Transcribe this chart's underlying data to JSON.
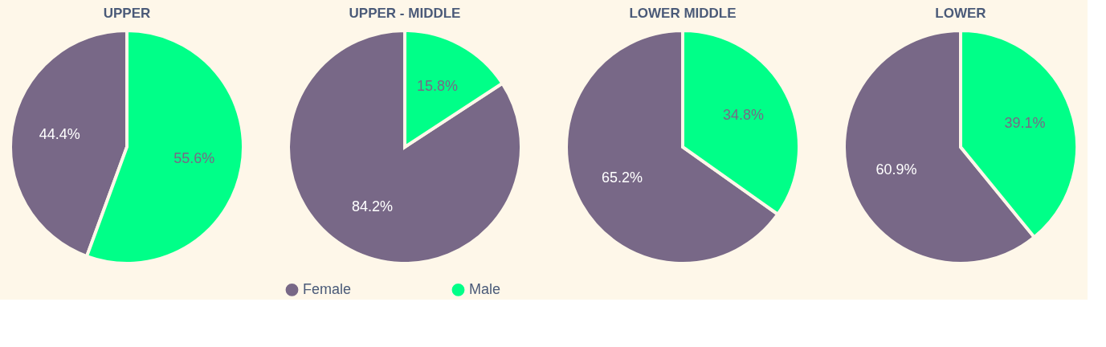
{
  "chart_data": [
    {
      "type": "pie",
      "title": "UPPER",
      "categories": [
        null,
        null
      ],
      "values": [
        44.4,
        55.6
      ],
      "colors": [
        "#786887",
        "#00ff88"
      ],
      "value_labels": [
        "44.4%",
        "55.6%"
      ]
    },
    {
      "type": "pie",
      "title": "UPPER - MIDDLE",
      "categories": [
        "Female",
        "Male"
      ],
      "values": [
        84.2,
        15.8
      ],
      "colors": [
        "#786887",
        "#00ff88"
      ],
      "value_labels": [
        "84.2%",
        "15.8%"
      ],
      "legend": "bottom"
    },
    {
      "type": "pie",
      "title": "LOWER MIDDLE",
      "categories": [
        null,
        null
      ],
      "values": [
        65.2,
        34.8
      ],
      "colors": [
        "#786887",
        "#00ff88"
      ],
      "value_labels": [
        "65.2%",
        "34.8%"
      ]
    },
    {
      "type": "pie",
      "title": "LOWER",
      "categories": [
        null,
        null
      ],
      "values": [
        60.9,
        39.1
      ],
      "colors": [
        "#786887",
        "#00ff88"
      ],
      "value_labels": [
        "60.9%",
        "39.1%"
      ]
    }
  ]
}
